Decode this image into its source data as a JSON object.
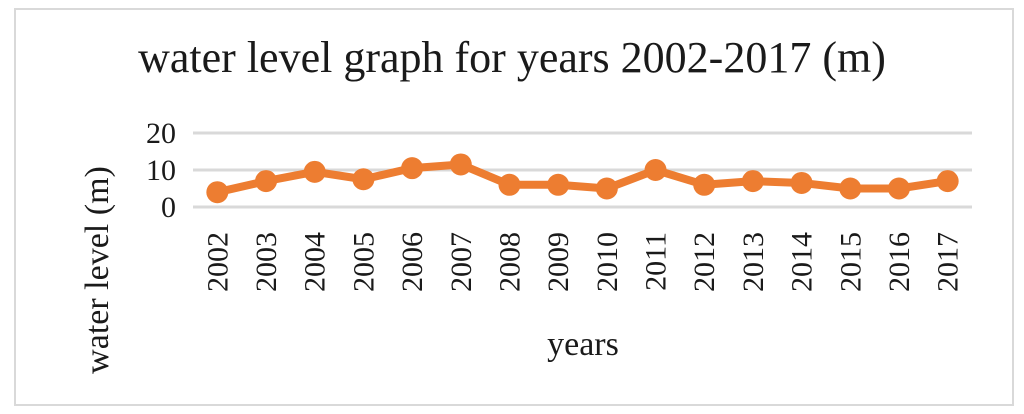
{
  "chart_data": {
    "type": "line",
    "title": "water level graph for years 2002-2017 (m)",
    "xlabel": "years",
    "ylabel": "water level (m)",
    "ylim": [
      0,
      20
    ],
    "yticks": [
      0,
      10,
      20
    ],
    "grid": true,
    "legend": "none",
    "categories": [
      "2002",
      "2003",
      "2004",
      "2005",
      "2006",
      "2007",
      "2008",
      "2009",
      "2010",
      "2011",
      "2012",
      "2013",
      "2014",
      "2015",
      "2016",
      "2017"
    ],
    "series": [
      {
        "name": "water level",
        "color": "#ed7d31",
        "values": [
          4,
          7,
          9.5,
          7.5,
          10.5,
          11.5,
          6,
          6,
          5,
          10,
          6,
          7,
          6.5,
          5,
          5,
          7
        ]
      }
    ]
  },
  "colors": {
    "line": "#ed7d31",
    "grid": "#d9d9d9",
    "text": "#1a1a1a",
    "border": "#d9d9d9"
  }
}
